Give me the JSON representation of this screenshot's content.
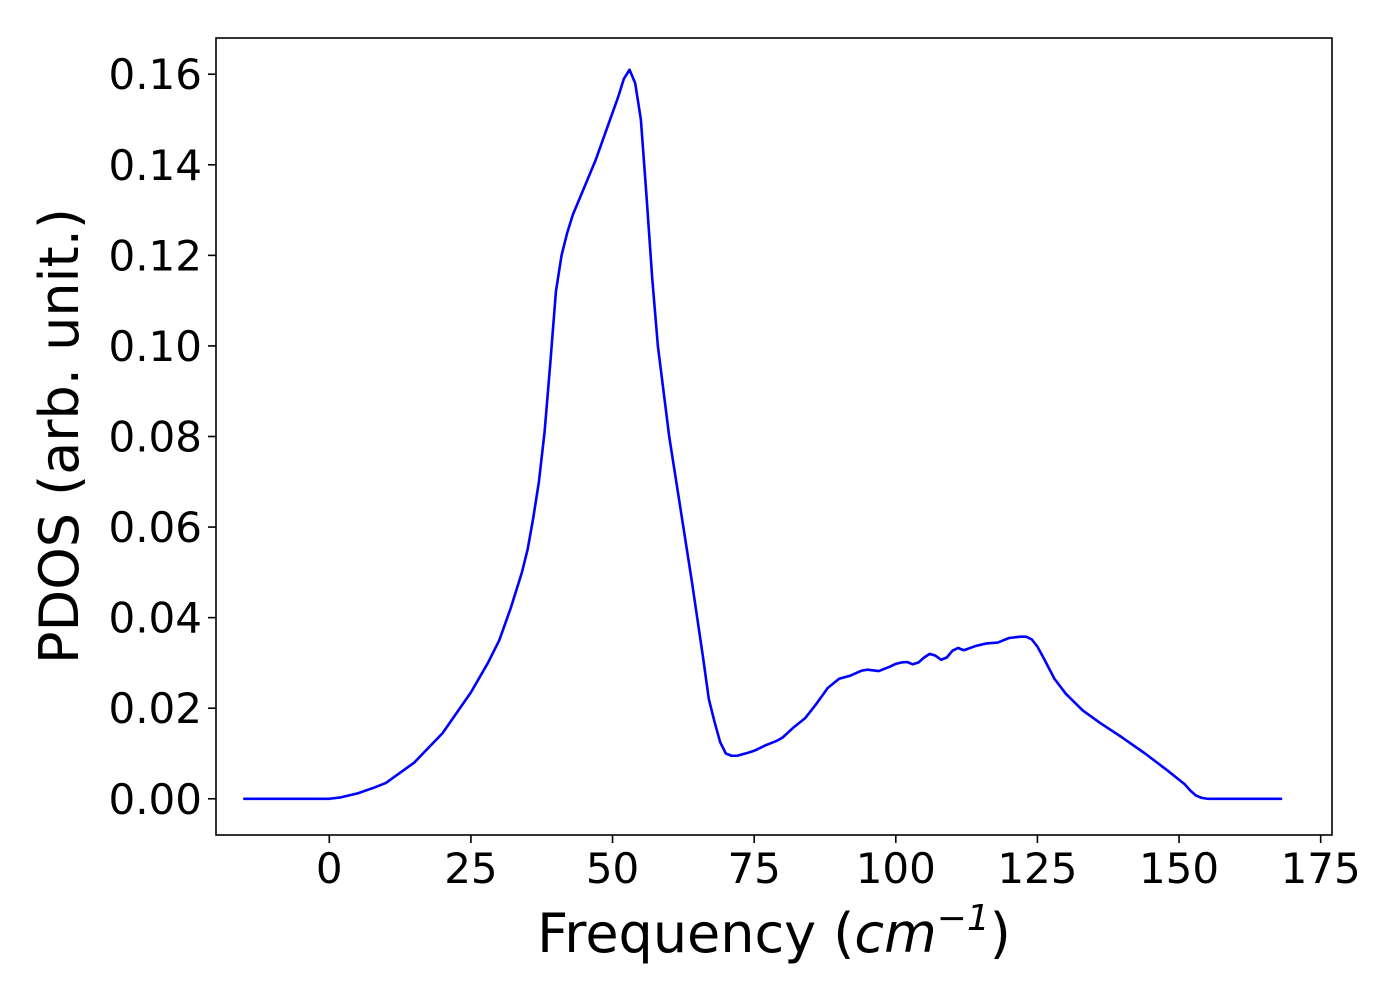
{
  "chart_data": {
    "type": "line",
    "xlabel": "Frequency",
    "xlabel_math": "cm",
    "xlabel_exponent": "−1",
    "ylabel": "PDOS (arb. unit.)",
    "xlim": [
      -20,
      177
    ],
    "ylim": [
      -0.008,
      0.168
    ],
    "xticks": [
      0,
      25,
      50,
      75,
      100,
      125,
      150,
      175
    ],
    "xtick_labels": [
      "0",
      "25",
      "50",
      "75",
      "100",
      "125",
      "150",
      "175"
    ],
    "yticks": [
      0.0,
      0.02,
      0.04,
      0.06,
      0.08,
      0.1,
      0.12,
      0.14,
      0.16
    ],
    "ytick_labels": [
      "0.00",
      "0.02",
      "0.04",
      "0.06",
      "0.08",
      "0.10",
      "0.12",
      "0.14",
      "0.16"
    ],
    "grid": false,
    "series": [
      {
        "color": "#0000ff",
        "x": [
          -15,
          -10,
          -5,
          0,
          2,
          5,
          8,
          10,
          15,
          20,
          25,
          28,
          30,
          32,
          34,
          35,
          36,
          37,
          38,
          39,
          40,
          41,
          42,
          43,
          45,
          47,
          49,
          51,
          52,
          53,
          54,
          55,
          56,
          57,
          58,
          60,
          62,
          64,
          66,
          67,
          68,
          69,
          70,
          71,
          72,
          74,
          75,
          77,
          79,
          80,
          82,
          84,
          86,
          88,
          90,
          92,
          94,
          95,
          97,
          99,
          100,
          101,
          102,
          103,
          104,
          105,
          106,
          107,
          108,
          109,
          110,
          111,
          112,
          114,
          116,
          118,
          120,
          122,
          123,
          124,
          125,
          126,
          128,
          130,
          133,
          136,
          140,
          144,
          148,
          150,
          151,
          152,
          153,
          154,
          155,
          157,
          160,
          165,
          168
        ],
        "y": [
          0.0,
          0.0,
          0.0,
          0.0,
          0.0003,
          0.0012,
          0.0025,
          0.0035,
          0.008,
          0.0145,
          0.0235,
          0.03,
          0.035,
          0.042,
          0.05,
          0.055,
          0.062,
          0.07,
          0.081,
          0.096,
          0.112,
          0.12,
          0.125,
          0.129,
          0.135,
          0.141,
          0.148,
          0.155,
          0.159,
          0.161,
          0.158,
          0.15,
          0.133,
          0.115,
          0.1,
          0.08,
          0.064,
          0.048,
          0.031,
          0.022,
          0.017,
          0.0125,
          0.01,
          0.0095,
          0.0095,
          0.0102,
          0.0106,
          0.0118,
          0.0128,
          0.0135,
          0.0158,
          0.0178,
          0.021,
          0.0245,
          0.0265,
          0.0272,
          0.0283,
          0.0285,
          0.0282,
          0.0292,
          0.0298,
          0.0301,
          0.0302,
          0.0297,
          0.0301,
          0.0312,
          0.032,
          0.0316,
          0.0307,
          0.0312,
          0.0327,
          0.0333,
          0.0328,
          0.0337,
          0.0343,
          0.0345,
          0.0355,
          0.0358,
          0.0358,
          0.0352,
          0.0336,
          0.0313,
          0.0265,
          0.0232,
          0.0195,
          0.0168,
          0.0135,
          0.01,
          0.0062,
          0.0042,
          0.0032,
          0.0018,
          0.0007,
          0.0002,
          0.0,
          0.0,
          0.0,
          0.0,
          0.0
        ]
      }
    ]
  }
}
